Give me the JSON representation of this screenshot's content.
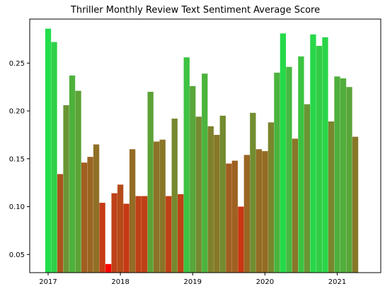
{
  "chart_data": {
    "type": "bar",
    "title": "Thriller Monthly Review Text Sentiment Average Score",
    "xlabel": "",
    "ylabel": "",
    "x_start": "2017-01",
    "x_end": "2021-04",
    "xticks": [
      {
        "label": "2017",
        "month": "2017-01"
      },
      {
        "label": "2018",
        "month": "2018-01"
      },
      {
        "label": "2019",
        "month": "2019-01"
      },
      {
        "label": "2020",
        "month": "2020-01"
      },
      {
        "label": "2021",
        "month": "2021-01"
      }
    ],
    "yticks": [
      0.05,
      0.1,
      0.15,
      0.2,
      0.25
    ],
    "ytick_labels": [
      "0.05",
      "0.10",
      "0.15",
      "0.20",
      "0.25"
    ],
    "ylim": [
      0.031,
      0.296
    ],
    "grid": false,
    "color_scale": {
      "low_color": "#ff0000",
      "high_color": "#22dd4b"
    },
    "values": [
      0.286,
      0.272,
      0.134,
      0.206,
      0.237,
      0.221,
      0.146,
      0.152,
      0.165,
      0.104,
      0.04,
      0.114,
      0.123,
      0.103,
      0.16,
      0.111,
      0.111,
      0.22,
      0.168,
      0.17,
      0.111,
      0.192,
      0.113,
      0.256,
      0.226,
      0.194,
      0.239,
      0.184,
      0.175,
      0.195,
      0.145,
      0.148,
      0.1,
      0.154,
      0.198,
      0.16,
      0.158,
      0.188,
      0.24,
      0.281,
      0.246,
      0.171,
      0.257,
      0.207,
      0.28,
      0.268,
      0.277,
      0.189,
      0.236,
      0.234,
      0.225,
      0.173
    ]
  }
}
